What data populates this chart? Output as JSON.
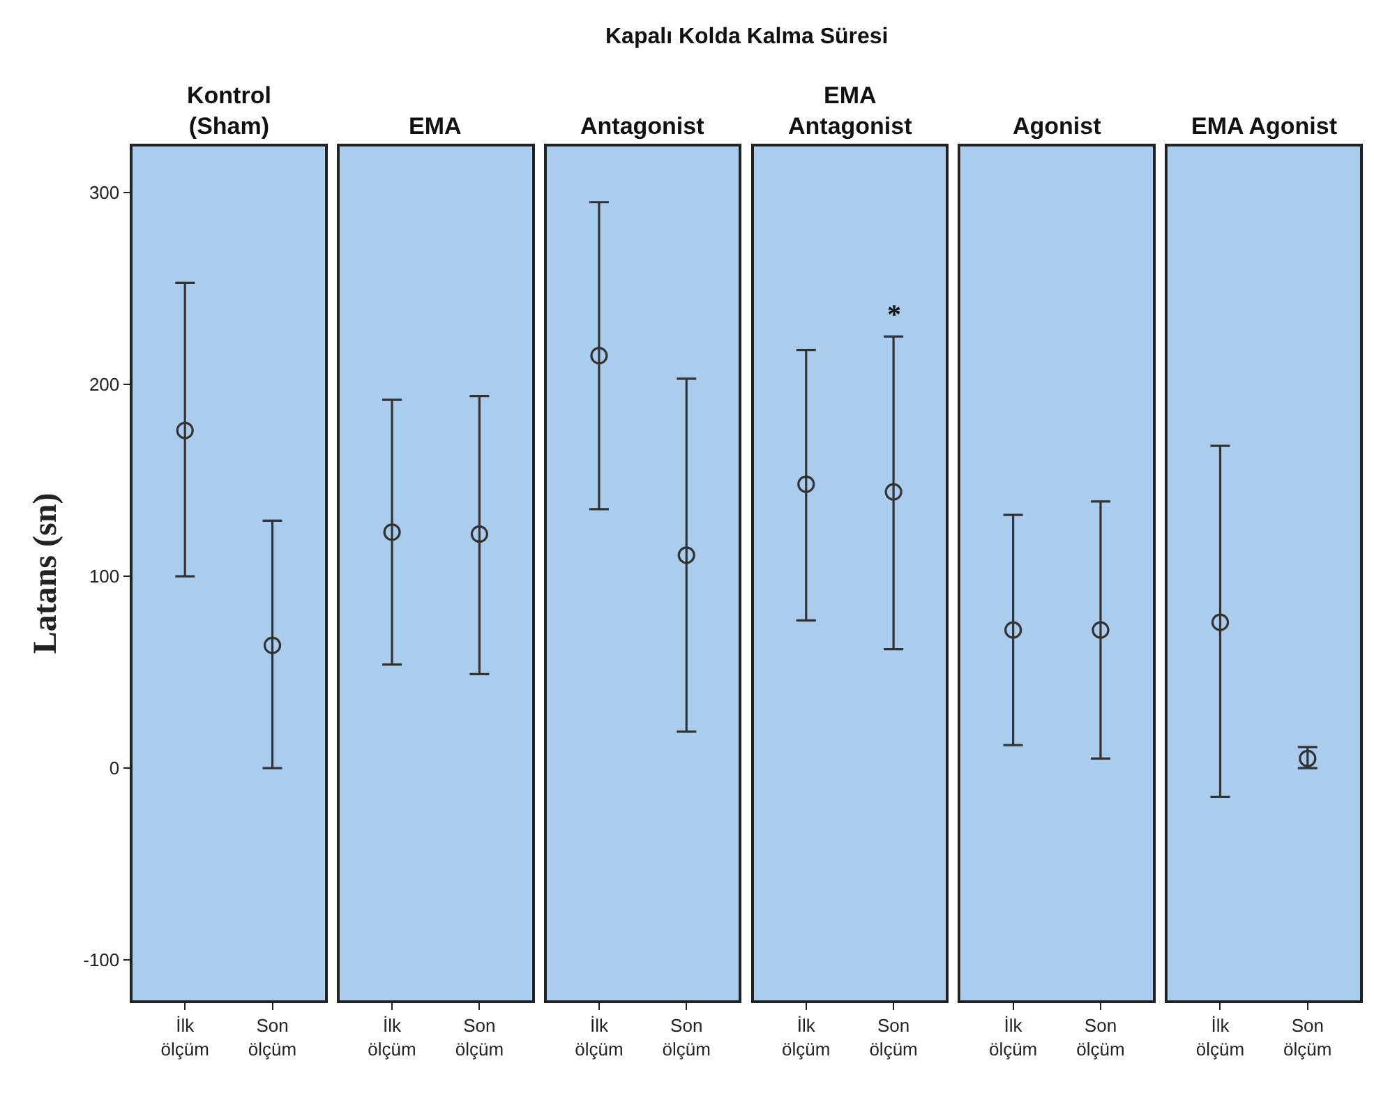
{
  "chart_data": [
    {
      "type": "scatter",
      "annotations": [
        "Kapalı Kolda Kalma Süresi"
      ],
      "subtitle": "Kontrol (Sham)",
      "ylabel": "Latans (sn)",
      "categories": [
        "İlk ölçüm",
        "Son ölçüm"
      ],
      "marker": "circle",
      "ylim": [
        -121,
        324
      ],
      "yticks": [
        -100,
        0,
        100,
        200,
        300
      ],
      "grid": false,
      "series": [
        {
          "color": "#333333",
          "values": [
            176,
            64
          ],
          "errors": [
            [
              100,
              253
            ],
            [
              0,
              129
            ]
          ]
        }
      ]
    },
    {
      "type": "scatter",
      "subtitle": "EMA",
      "categories": [
        "İlk ölçüm",
        "Son ölçüm"
      ],
      "marker": "circle",
      "ylim": [
        -121,
        324
      ],
      "yticks": [
        -100,
        0,
        100,
        200,
        300
      ],
      "tick_labels": "x",
      "grid": false,
      "series": [
        {
          "color": "#333333",
          "values": [
            123,
            122
          ],
          "errors": [
            [
              54,
              192
            ],
            [
              49,
              194
            ]
          ]
        }
      ]
    },
    {
      "type": "scatter",
      "subtitle": "Antagonist",
      "categories": [
        "İlk ölçüm",
        "Son ölçüm"
      ],
      "marker": "circle",
      "ylim": [
        -121,
        324
      ],
      "yticks": [
        -100,
        0,
        100,
        200,
        300
      ],
      "tick_labels": "x",
      "grid": false,
      "series": [
        {
          "color": "#333333",
          "values": [
            215,
            111
          ],
          "errors": [
            [
              135,
              295
            ],
            [
              19,
              203
            ]
          ]
        }
      ]
    },
    {
      "type": "scatter",
      "subtitle": "EMA Antagonist",
      "categories": [
        "İlk ölçüm",
        "Son ölçüm"
      ],
      "marker": "circle",
      "ylim": [
        -121,
        324
      ],
      "yticks": [
        -100,
        0,
        100,
        200,
        300
      ],
      "tick_labels": "x",
      "grid": false,
      "annotations": [
        "*"
      ],
      "series": [
        {
          "color": "#333333",
          "values": [
            148,
            144
          ],
          "errors": [
            [
              77,
              218
            ],
            [
              62,
              225
            ]
          ]
        }
      ]
    },
    {
      "type": "scatter",
      "subtitle": "Agonist",
      "categories": [
        "İlk ölçüm",
        "Son ölçüm"
      ],
      "marker": "circle",
      "ylim": [
        -121,
        324
      ],
      "yticks": [
        -100,
        0,
        100,
        200,
        300
      ],
      "tick_labels": "x",
      "grid": false,
      "series": [
        {
          "color": "#333333",
          "values": [
            72,
            72
          ],
          "errors": [
            [
              12,
              132
            ],
            [
              5,
              139
            ]
          ]
        }
      ]
    },
    {
      "type": "scatter",
      "subtitle": "EMA Agonist",
      "categories": [
        "İlk ölçüm",
        "Son ölçüm"
      ],
      "marker": "circle",
      "ylim": [
        -121,
        324
      ],
      "yticks": [
        -100,
        0,
        100,
        200,
        300
      ],
      "tick_labels": "x",
      "grid": false,
      "series": [
        {
          "color": "#333333",
          "values": [
            76,
            5
          ],
          "errors": [
            [
              -15,
              168
            ],
            [
              0,
              11
            ]
          ]
        }
      ]
    }
  ]
}
